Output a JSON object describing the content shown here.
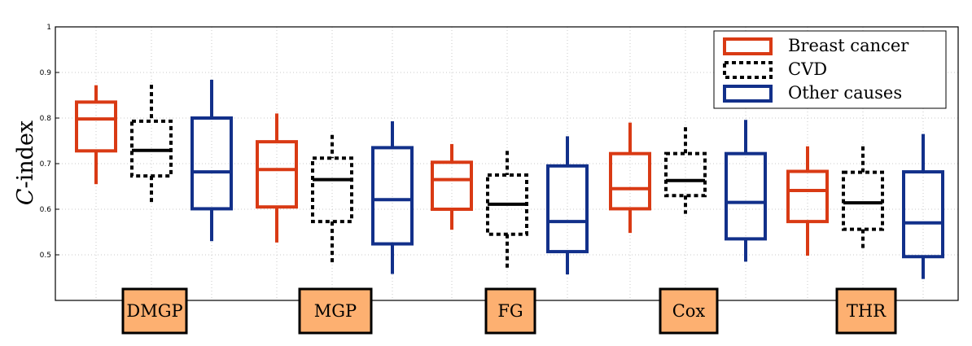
{
  "chart_data": {
    "type": "boxplot",
    "title": "",
    "xlabel": "",
    "ylabel_symbol": "C",
    "ylabel_rest": "-index",
    "ylim": [
      0.4,
      1.0
    ],
    "yticks": [
      0.5,
      0.6,
      0.7,
      0.8,
      0.9,
      1
    ],
    "ytick_labels": [
      "0.5",
      "0.6",
      "0.7",
      "0.8",
      "0.9",
      "1"
    ],
    "grid": true,
    "legend_position": "top-right",
    "groups": [
      "DMGP",
      "MGP",
      "FG",
      "Cox",
      "THR"
    ],
    "series": [
      {
        "name": "Breast cancer",
        "color": "#D93A14",
        "line_style": "solid",
        "boxes": [
          {
            "group": "DMGP",
            "whisker_low": 0.655,
            "q1": 0.728,
            "median": 0.798,
            "q3": 0.835,
            "whisker_high": 0.872
          },
          {
            "group": "MGP",
            "whisker_low": 0.527,
            "q1": 0.605,
            "median": 0.687,
            "q3": 0.748,
            "whisker_high": 0.81
          },
          {
            "group": "FG",
            "whisker_low": 0.555,
            "q1": 0.6,
            "median": 0.665,
            "q3": 0.703,
            "whisker_high": 0.743
          },
          {
            "group": "Cox",
            "whisker_low": 0.548,
            "q1": 0.601,
            "median": 0.645,
            "q3": 0.722,
            "whisker_high": 0.79
          },
          {
            "group": "THR",
            "whisker_low": 0.498,
            "q1": 0.573,
            "median": 0.641,
            "q3": 0.683,
            "whisker_high": 0.738
          }
        ]
      },
      {
        "name": "CVD",
        "color": "#000000",
        "line_style": "dotted",
        "boxes": [
          {
            "group": "DMGP",
            "whisker_low": 0.61,
            "q1": 0.673,
            "median": 0.729,
            "q3": 0.793,
            "whisker_high": 0.873
          },
          {
            "group": "MGP",
            "whisker_low": 0.477,
            "q1": 0.573,
            "median": 0.665,
            "q3": 0.712,
            "whisker_high": 0.763
          },
          {
            "group": "FG",
            "whisker_low": 0.47,
            "q1": 0.545,
            "median": 0.611,
            "q3": 0.675,
            "whisker_high": 0.728
          },
          {
            "group": "Cox",
            "whisker_low": 0.59,
            "q1": 0.63,
            "median": 0.663,
            "q3": 0.722,
            "whisker_high": 0.78
          },
          {
            "group": "THR",
            "whisker_low": 0.512,
            "q1": 0.556,
            "median": 0.614,
            "q3": 0.681,
            "whisker_high": 0.738
          }
        ]
      },
      {
        "name": "Other causes",
        "color": "#12308A",
        "line_style": "solid",
        "boxes": [
          {
            "group": "DMGP",
            "whisker_low": 0.53,
            "q1": 0.601,
            "median": 0.682,
            "q3": 0.8,
            "whisker_high": 0.884
          },
          {
            "group": "MGP",
            "whisker_low": 0.458,
            "q1": 0.524,
            "median": 0.621,
            "q3": 0.735,
            "whisker_high": 0.793
          },
          {
            "group": "FG",
            "whisker_low": 0.457,
            "q1": 0.507,
            "median": 0.573,
            "q3": 0.695,
            "whisker_high": 0.76
          },
          {
            "group": "Cox",
            "whisker_low": 0.485,
            "q1": 0.535,
            "median": 0.615,
            "q3": 0.722,
            "whisker_high": 0.796
          },
          {
            "group": "THR",
            "whisker_low": 0.447,
            "q1": 0.496,
            "median": 0.57,
            "q3": 0.682,
            "whisker_high": 0.765
          }
        ]
      }
    ]
  }
}
